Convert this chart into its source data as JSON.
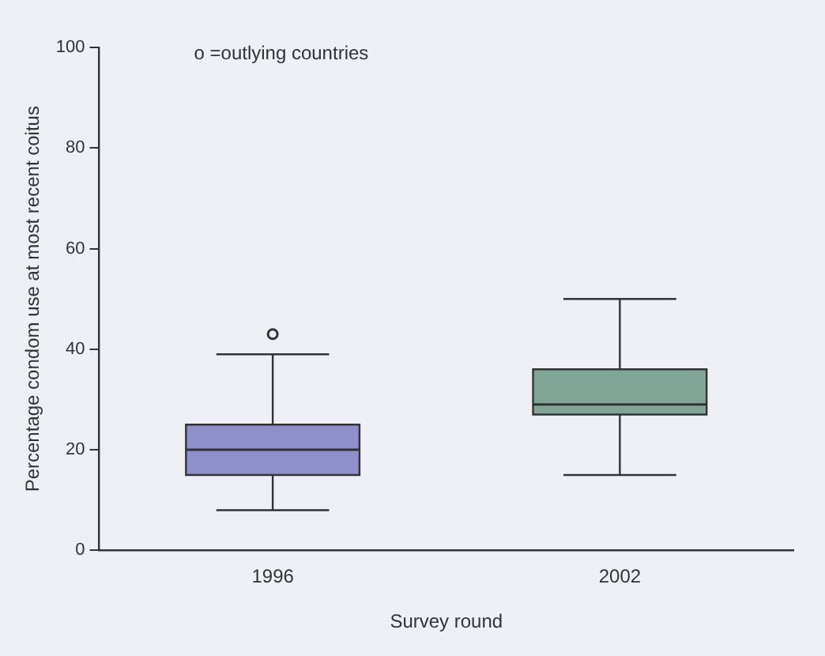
{
  "chart_data": {
    "type": "box",
    "xlabel": "Survey round",
    "ylabel": "Percentage condom use at most recent coitus",
    "categories": [
      "1996",
      "2002"
    ],
    "boxes": [
      {
        "low": 8,
        "q1": 15,
        "median": 20,
        "q3": 25,
        "high": 39,
        "outliers": [
          43
        ]
      },
      {
        "low": 15,
        "q1": 27,
        "median": 29,
        "q3": 36,
        "high": 50
      }
    ],
    "colors": [
      "#8f8fcc",
      "#7fa597"
    ],
    "ylim": [
      0,
      100
    ],
    "yticks": [
      0,
      20,
      40,
      60,
      80,
      100
    ],
    "grid": false,
    "annotations": [
      "o =outlying countries"
    ]
  }
}
